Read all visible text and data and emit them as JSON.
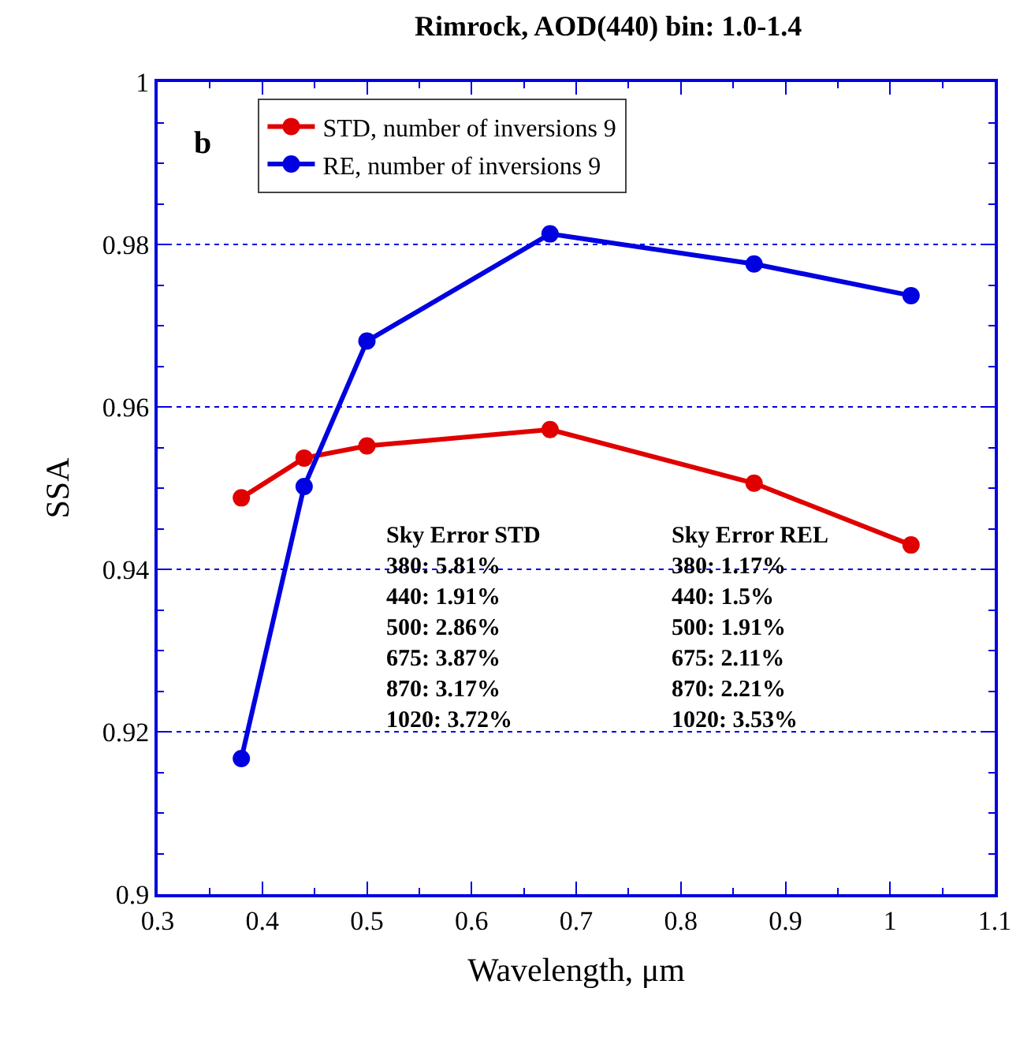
{
  "chart_data": {
    "type": "line",
    "title": "Rimrock, AOD(440) bin: 1.0-1.4",
    "xlabel": "Wavelength, μm",
    "ylabel": "SSA",
    "x": [
      0.38,
      0.44,
      0.5,
      0.675,
      0.87,
      1.02
    ],
    "series": [
      {
        "name": "STD, number of inversions 9",
        "color": "#e00000",
        "values": [
          0.9488,
          0.9537,
          0.9552,
          0.9572,
          0.9506,
          0.943
        ]
      },
      {
        "name": "RE, number of inversions 9",
        "color": "#0000e0",
        "values": [
          0.9167,
          0.9502,
          0.9681,
          0.9813,
          0.9776,
          0.9737
        ]
      }
    ],
    "xlim": [
      0.3,
      1.1
    ],
    "xticks": [
      0.3,
      0.4,
      0.5,
      0.6,
      0.7,
      0.8,
      0.9,
      1,
      1.1
    ],
    "ylim": [
      0.9,
      1
    ],
    "yticks": [
      0.9,
      0.92,
      0.94,
      0.96,
      0.98,
      1
    ],
    "grid": "y",
    "legend": "top left",
    "marker": "circle",
    "line_style": "solid",
    "annotations": [
      "b",
      "Sky Error STD\n380: 5.81%\n440: 1.91%\n500: 2.86%\n675: 3.87%\n870: 3.17%\n1020: 3.72%",
      "Sky Error REL\n380: 1.17%\n440: 1.5%\n500: 1.91%\n675: 2.11%\n870: 2.21%\n1020: 3.53%"
    ]
  }
}
